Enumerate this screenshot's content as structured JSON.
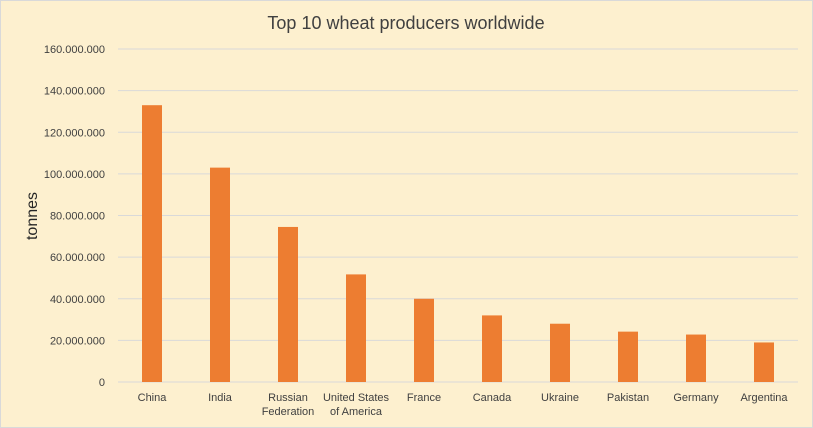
{
  "chart_data": {
    "type": "bar",
    "title": "Top 10 wheat producers worldwide",
    "xlabel": "",
    "ylabel": "tonnes",
    "ylim": [
      0,
      160000000
    ],
    "yticks": [
      0,
      20000000,
      40000000,
      60000000,
      80000000,
      100000000,
      120000000,
      140000000,
      160000000
    ],
    "ytick_labels": [
      "0",
      "20.000.000",
      "40.000.000",
      "60.000.000",
      "80.000.000",
      "100.000.000",
      "120.000.000",
      "140.000.000",
      "160.000.000"
    ],
    "grid": true,
    "legend": "none",
    "categories": [
      [
        "China"
      ],
      [
        "India"
      ],
      [
        "Russian",
        "Federation"
      ],
      [
        "United States",
        "of America"
      ],
      [
        "France"
      ],
      [
        "Canada"
      ],
      [
        "Ukraine"
      ],
      [
        "Pakistan"
      ],
      [
        "Germany"
      ],
      [
        "Argentina"
      ]
    ],
    "values": [
      133000000,
      103000000,
      74500000,
      51700000,
      40000000,
      32000000,
      28000000,
      24200000,
      22800000,
      19000000
    ]
  },
  "colors": {
    "background": "#fdf0cf",
    "bar": "#ed7d31",
    "grid": "#d9d9d9",
    "text": "#404040"
  }
}
